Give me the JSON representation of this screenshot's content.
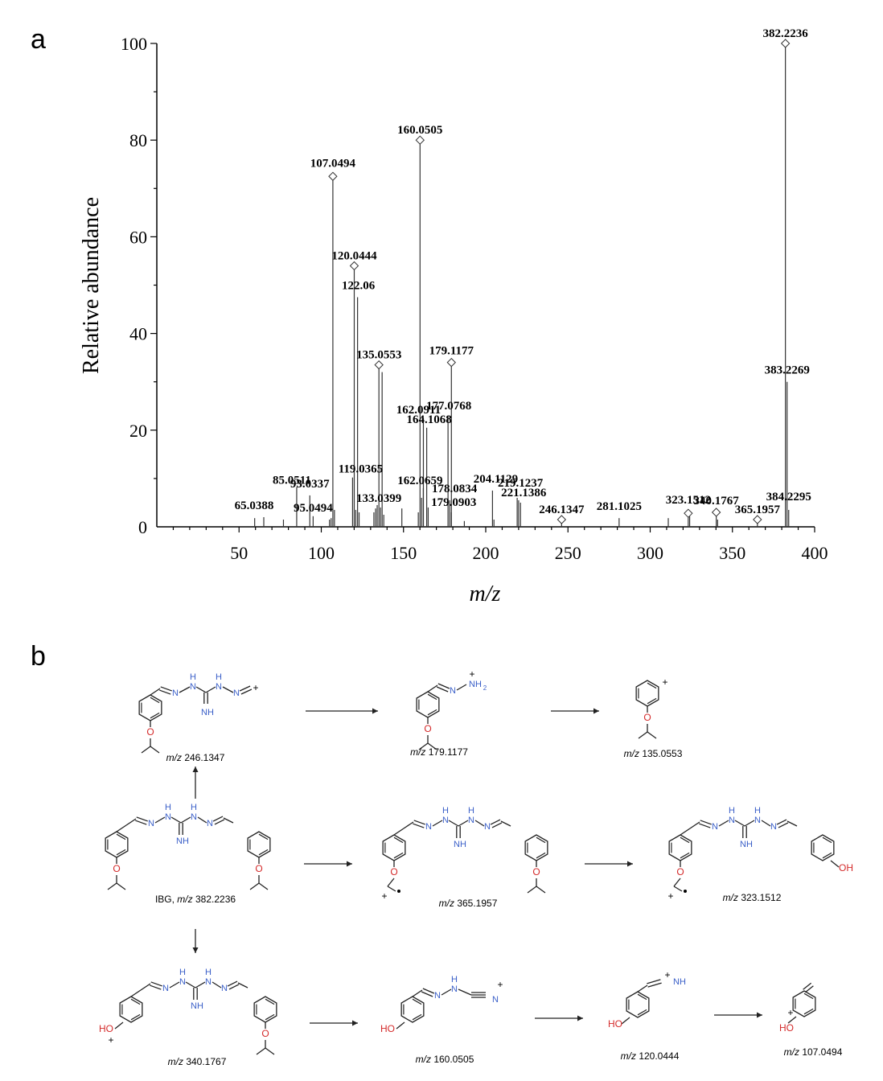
{
  "panels": {
    "a": "a",
    "b": "b"
  },
  "chart_data": {
    "type": "bar",
    "ylabel": "Relative abundance",
    "xlabel": "m/z",
    "xlim": [
      0,
      400
    ],
    "ylim": [
      0,
      100
    ],
    "xticks": [
      50,
      100,
      150,
      200,
      250,
      300,
      350,
      400
    ],
    "yticks": [
      0,
      20,
      40,
      60,
      80,
      100
    ],
    "peaks": [
      {
        "x": 59.5,
        "y": 1.8
      },
      {
        "x": 65.0388,
        "y": 2.0
      },
      {
        "x": 77,
        "y": 1.5
      },
      {
        "x": 85.0511,
        "y": 8.2
      },
      {
        "x": 93.0337,
        "y": 6.5
      },
      {
        "x": 95.0494,
        "y": 2.2
      },
      {
        "x": 105,
        "y": 1.5
      },
      {
        "x": 106,
        "y": 1.8
      },
      {
        "x": 107.0494,
        "y": 72.5
      },
      {
        "x": 108,
        "y": 3.5
      },
      {
        "x": 119.0365,
        "y": 10.2
      },
      {
        "x": 120.0444,
        "y": 54
      },
      {
        "x": 121,
        "y": 3.5
      },
      {
        "x": 122.06,
        "y": 47.5
      },
      {
        "x": 123,
        "y": 3.0
      },
      {
        "x": 132,
        "y": 3.0
      },
      {
        "x": 133.0399,
        "y": 3.8
      },
      {
        "x": 134,
        "y": 4.5
      },
      {
        "x": 135.0553,
        "y": 33.5
      },
      {
        "x": 136,
        "y": 4.0
      },
      {
        "x": 137,
        "y": 32.0
      },
      {
        "x": 138,
        "y": 2.5
      },
      {
        "x": 149,
        "y": 3.8
      },
      {
        "x": 159,
        "y": 3.0
      },
      {
        "x": 160.0505,
        "y": 80
      },
      {
        "x": 161,
        "y": 6.0
      },
      {
        "x": 162.0659,
        "y": 8.0
      },
      {
        "x": 162.0911,
        "y": 22.5
      },
      {
        "x": 164.1068,
        "y": 20.5
      },
      {
        "x": 165,
        "y": 4.0
      },
      {
        "x": 177.0768,
        "y": 23.0
      },
      {
        "x": 178.0834,
        "y": 5.5
      },
      {
        "x": 179.1177,
        "y": 34.0
      },
      {
        "x": 179.0903,
        "y": 3.0
      },
      {
        "x": 187,
        "y": 1.2
      },
      {
        "x": 204.1129,
        "y": 7.5
      },
      {
        "x": 205,
        "y": 1.5
      },
      {
        "x": 219.1237,
        "y": 6.0
      },
      {
        "x": 220,
        "y": 5.5
      },
      {
        "x": 221.1386,
        "y": 5.0
      },
      {
        "x": 246.1347,
        "y": 1.5
      },
      {
        "x": 281.1025,
        "y": 1.8
      },
      {
        "x": 311,
        "y": 1.8
      },
      {
        "x": 323.1512,
        "y": 2.8
      },
      {
        "x": 324,
        "y": 2.2
      },
      {
        "x": 340.1767,
        "y": 3.0
      },
      {
        "x": 341,
        "y": 1.5
      },
      {
        "x": 365.1957,
        "y": 1.5
      },
      {
        "x": 382.2236,
        "y": 100
      },
      {
        "x": 383.2269,
        "y": 30
      },
      {
        "x": 384.2295,
        "y": 3.5
      }
    ],
    "diamonds": [
      107.0494,
      120.0444,
      135.0553,
      160.0505,
      179.1177,
      246.1347,
      323.1512,
      340.1767,
      365.1957,
      382.2236
    ],
    "annotations": [
      {
        "text": "65.0388",
        "x": 65.0388,
        "y": 2.0
      },
      {
        "text": "85.0511",
        "x": 85.0511,
        "y": 8.2
      },
      {
        "text": "93.0337",
        "x": 93.0337,
        "y": 6.5
      },
      {
        "text": "95.0494",
        "x": 95.0494,
        "y": 2.2
      },
      {
        "text": "107.0494",
        "x": 107.0494,
        "y": 72.5
      },
      {
        "text": "119.0365",
        "x": 119.0365,
        "y": 10.2
      },
      {
        "text": "120.0444",
        "x": 120.0444,
        "y": 54
      },
      {
        "text": "122.06",
        "x": 122.06,
        "y": 47.5
      },
      {
        "text": "133.0399",
        "x": 133.0399,
        "y": 3.8
      },
      {
        "text": "135.0553",
        "x": 135.0553,
        "y": 33.5
      },
      {
        "text": "160.0505",
        "x": 160.0505,
        "y": 80
      },
      {
        "text": "162.0659",
        "x": 162.0659,
        "y": 8.0
      },
      {
        "text": "162.0911",
        "x": 162.0911,
        "y": 22.5
      },
      {
        "text": "164.1068",
        "x": 164.1068,
        "y": 20.5
      },
      {
        "text": "177.0768",
        "x": 177.0768,
        "y": 23.0
      },
      {
        "text": "178.0834",
        "x": 178.0834,
        "y": 5.5
      },
      {
        "text": "179.0903",
        "x": 179.0903,
        "y": 3.0
      },
      {
        "text": "179.1177",
        "x": 179.1177,
        "y": 34.0
      },
      {
        "text": "204.1129",
        "x": 204.1129,
        "y": 7.5
      },
      {
        "text": "219.1237",
        "x": 219.1237,
        "y": 6.0
      },
      {
        "text": "221.1386",
        "x": 221.1386,
        "y": 5.0
      },
      {
        "text": "246.1347",
        "x": 246.1347,
        "y": 1.5
      },
      {
        "text": "281.1025",
        "x": 281.1025,
        "y": 1.8
      },
      {
        "text": "323.1512",
        "x": 323.1512,
        "y": 2.8
      },
      {
        "text": "340.1767",
        "x": 340.1767,
        "y": 3.0
      },
      {
        "text": "365.1957",
        "x": 365.1957,
        "y": 1.5
      },
      {
        "text": "382.2236",
        "x": 382.2236,
        "y": 100
      },
      {
        "text": "383.2269",
        "x": 383.2269,
        "y": 30
      },
      {
        "text": "384.2295",
        "x": 384.2295,
        "y": 3.5
      }
    ]
  },
  "scheme": {
    "mz_prefix": "m/z",
    "labels": {
      "mol1": "246.1347",
      "mol2": "179.1177",
      "mol3": "135.0553",
      "ibg_prefix": "IBG,",
      "ibg": "382.2236",
      "mol5": "365.1957",
      "mol6": "323.1512",
      "mol7": "340.1767",
      "mol8": "160.0505",
      "mol9": "120.0444",
      "mol10": "107.0494"
    },
    "atoms": {
      "N": "N",
      "H": "H",
      "NH": "NH",
      "NH2": "NH",
      "sub2": "2",
      "O": "O",
      "HO": "HO",
      "OH": "OH",
      "plus": "+"
    },
    "colors": {
      "nitrogen": "#3a5fc8",
      "oxygen": "#d42a2a",
      "bond": "#222222"
    }
  }
}
